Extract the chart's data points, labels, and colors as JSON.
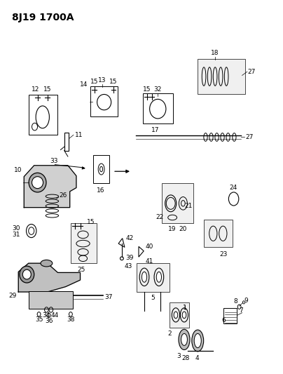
{
  "title": "8J19 1700A",
  "bg_color": "#ffffff",
  "line_color": "#000000",
  "title_fontsize": 10,
  "label_fontsize": 6.5,
  "figsize": [
    4.04,
    5.33
  ],
  "dpi": 100
}
